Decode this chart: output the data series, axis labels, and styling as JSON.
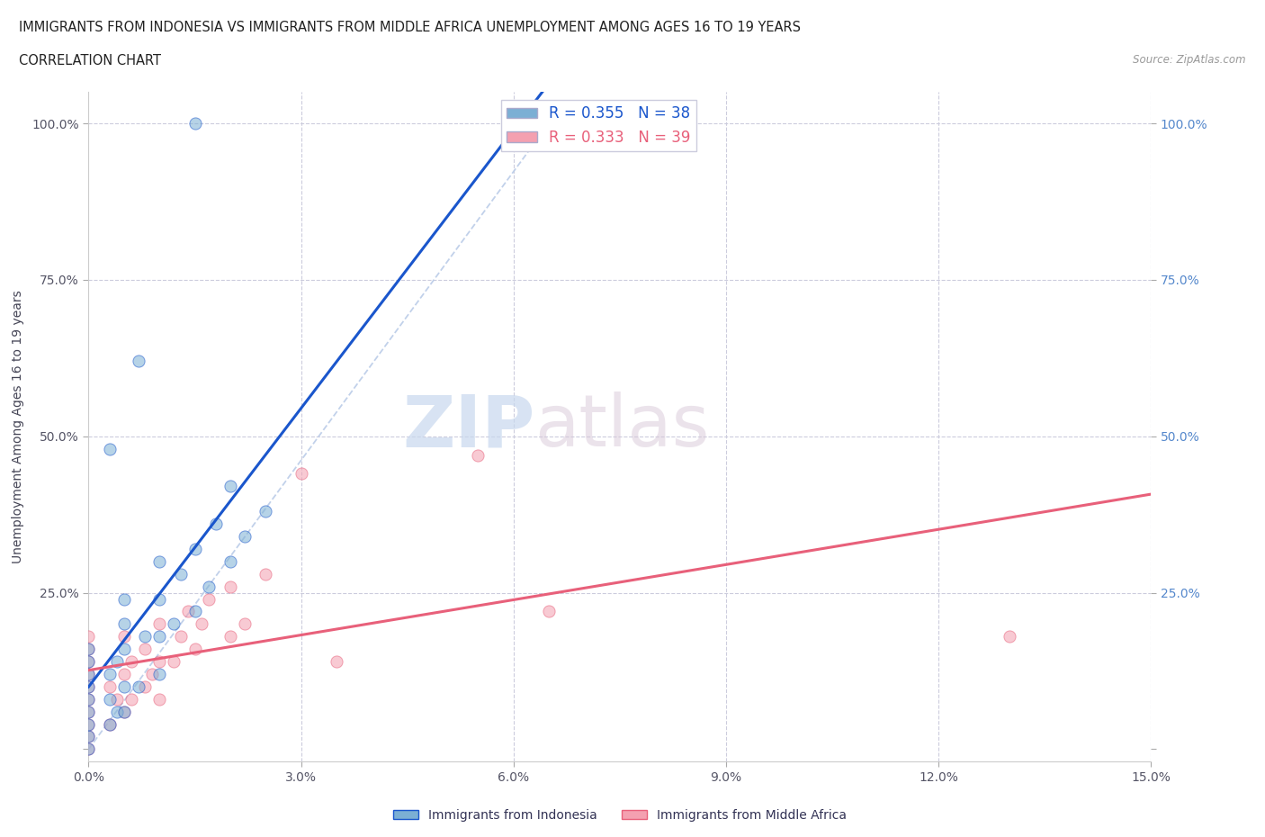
{
  "title_line1": "IMMIGRANTS FROM INDONESIA VS IMMIGRANTS FROM MIDDLE AFRICA UNEMPLOYMENT AMONG AGES 16 TO 19 YEARS",
  "title_line2": "CORRELATION CHART",
  "source": "Source: ZipAtlas.com",
  "ylabel": "Unemployment Among Ages 16 to 19 years",
  "xlim": [
    0.0,
    0.15
  ],
  "ylim": [
    -0.02,
    1.05
  ],
  "xticks": [
    0.0,
    0.03,
    0.06,
    0.09,
    0.12,
    0.15
  ],
  "xticklabels": [
    "0.0%",
    "3.0%",
    "6.0%",
    "9.0%",
    "12.0%",
    "15.0%"
  ],
  "yticks": [
    0.0,
    0.25,
    0.5,
    0.75,
    1.0
  ],
  "yticklabels_left": [
    "",
    "25.0%",
    "50.0%",
    "75.0%",
    "100.0%"
  ],
  "yticklabels_right": [
    "",
    "25.0%",
    "50.0%",
    "75.0%",
    "100.0%"
  ],
  "r_indonesia": 0.355,
  "n_indonesia": 38,
  "r_middle_africa": 0.333,
  "n_middle_africa": 39,
  "color_indonesia": "#7BAFD4",
  "color_middle_africa": "#F4A0B0",
  "line_color_indonesia": "#1A56CC",
  "line_color_middle_africa": "#E8607A",
  "diagonal_color": "#BBCCE8",
  "watermark_zip": "ZIP",
  "watermark_atlas": "atlas",
  "indonesia_x": [
    0.0,
    0.0,
    0.0,
    0.0,
    0.0,
    0.0,
    0.0,
    0.0,
    0.0,
    0.003,
    0.003,
    0.003,
    0.004,
    0.004,
    0.005,
    0.005,
    0.005,
    0.005,
    0.005,
    0.007,
    0.008,
    0.01,
    0.01,
    0.01,
    0.01,
    0.012,
    0.013,
    0.015,
    0.015,
    0.017,
    0.018,
    0.02,
    0.02,
    0.022,
    0.025,
    0.003,
    0.007,
    0.015
  ],
  "indonesia_y": [
    0.0,
    0.02,
    0.04,
    0.06,
    0.08,
    0.1,
    0.12,
    0.14,
    0.16,
    0.04,
    0.08,
    0.12,
    0.06,
    0.14,
    0.06,
    0.1,
    0.16,
    0.2,
    0.24,
    0.1,
    0.18,
    0.12,
    0.18,
    0.24,
    0.3,
    0.2,
    0.28,
    0.22,
    0.32,
    0.26,
    0.36,
    0.3,
    0.42,
    0.34,
    0.38,
    0.48,
    0.62,
    1.0
  ],
  "middle_africa_x": [
    0.0,
    0.0,
    0.0,
    0.0,
    0.0,
    0.0,
    0.0,
    0.0,
    0.0,
    0.0,
    0.003,
    0.003,
    0.004,
    0.005,
    0.005,
    0.005,
    0.006,
    0.006,
    0.008,
    0.008,
    0.009,
    0.01,
    0.01,
    0.01,
    0.012,
    0.013,
    0.014,
    0.015,
    0.016,
    0.017,
    0.02,
    0.02,
    0.022,
    0.025,
    0.03,
    0.035,
    0.055,
    0.065,
    0.13
  ],
  "middle_africa_y": [
    0.0,
    0.02,
    0.04,
    0.06,
    0.08,
    0.1,
    0.12,
    0.14,
    0.16,
    0.18,
    0.04,
    0.1,
    0.08,
    0.06,
    0.12,
    0.18,
    0.08,
    0.14,
    0.1,
    0.16,
    0.12,
    0.08,
    0.14,
    0.2,
    0.14,
    0.18,
    0.22,
    0.16,
    0.2,
    0.24,
    0.18,
    0.26,
    0.2,
    0.28,
    0.44,
    0.14,
    0.47,
    0.22,
    0.18
  ],
  "bg_color": "#FFFFFF",
  "grid_color": "#CCCCDD",
  "font_color": "#333333"
}
